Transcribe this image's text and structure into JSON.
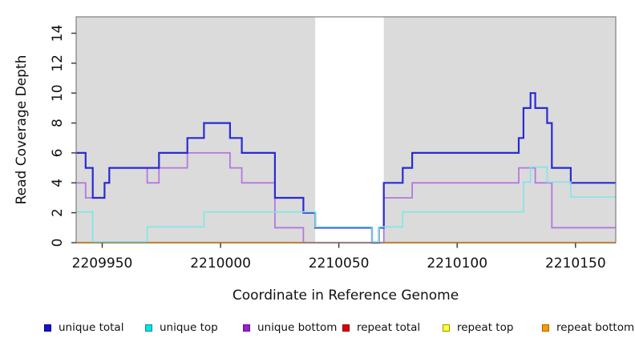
{
  "figure": {
    "y_axis_label": "Read Coverage Depth",
    "x_axis_label": "Coordinate in Reference Genome"
  },
  "legend": {
    "items": [
      {
        "label": "unique total",
        "fill": "#1414CC",
        "border": "#00008B"
      },
      {
        "label": "unique top",
        "fill": "#00E5E5",
        "border": "#008B8B"
      },
      {
        "label": "unique bottom",
        "fill": "#9B1FD1",
        "border": "#5A0F8C"
      },
      {
        "label": "repeat total",
        "fill": "#E00000",
        "border": "#8B0000"
      },
      {
        "label": "repeat top",
        "fill": "#FFFF33",
        "border": "#999900"
      },
      {
        "label": "repeat bottom",
        "fill": "#FF9900",
        "border": "#A66300"
      }
    ]
  },
  "chart_data": {
    "type": "line",
    "subtype": "step-coverage",
    "title": "",
    "xlabel": "Coordinate in Reference Genome",
    "ylabel": "Read Coverage Depth",
    "xlim": [
      2209939,
      2210167
    ],
    "ylim": [
      0,
      15.1
    ],
    "x_ticks": [
      2209950,
      2210000,
      2210050,
      2210100,
      2210150
    ],
    "y_ticks": [
      0,
      2,
      4,
      6,
      8,
      10,
      12,
      14
    ],
    "grid": false,
    "legend_position": "bottom",
    "panel_background": "#DBDBDB",
    "uncovered_band": {
      "x0": 2210040,
      "x1": 2210069,
      "color": "#FFFFFF"
    },
    "frame_color": "#7F7F7F",
    "tick_color": "#333333",
    "series": [
      {
        "name": "unique total",
        "color": "#2A2AD4",
        "points": [
          [
            2209939,
            6
          ],
          [
            2209943,
            5
          ],
          [
            2209946,
            3
          ],
          [
            2209951,
            4
          ],
          [
            2209953,
            5
          ],
          [
            2209974,
            6
          ],
          [
            2209986,
            7
          ],
          [
            2209993,
            8
          ],
          [
            2210004,
            7
          ],
          [
            2210009,
            6
          ],
          [
            2210023,
            3
          ],
          [
            2210035,
            2
          ],
          [
            2210040,
            1
          ],
          [
            2210064,
            0
          ],
          [
            2210067,
            1
          ],
          [
            2210069,
            4
          ],
          [
            2210077,
            5
          ],
          [
            2210081,
            6
          ],
          [
            2210126,
            7
          ],
          [
            2210128,
            9
          ],
          [
            2210131,
            10
          ],
          [
            2210133,
            9
          ],
          [
            2210138,
            8
          ],
          [
            2210140,
            5
          ],
          [
            2210148,
            4
          ],
          [
            2210167,
            4
          ]
        ]
      },
      {
        "name": "unique top",
        "color": "#7FE6E6",
        "points": [
          [
            2209939,
            2
          ],
          [
            2209946,
            0
          ],
          [
            2209969,
            1
          ],
          [
            2209993,
            2
          ],
          [
            2210040,
            1
          ],
          [
            2210064,
            0
          ],
          [
            2210067,
            1
          ],
          [
            2210077,
            2
          ],
          [
            2210128,
            4
          ],
          [
            2210131,
            5
          ],
          [
            2210138,
            4
          ],
          [
            2210148,
            3
          ],
          [
            2210167,
            3
          ]
        ]
      },
      {
        "name": "unique bottom",
        "color": "#B478E0",
        "points": [
          [
            2209939,
            4
          ],
          [
            2209943,
            3
          ],
          [
            2209951,
            4
          ],
          [
            2209953,
            5
          ],
          [
            2209969,
            4
          ],
          [
            2209974,
            5
          ],
          [
            2209986,
            6
          ],
          [
            2210004,
            5
          ],
          [
            2210009,
            4
          ],
          [
            2210023,
            1
          ],
          [
            2210035,
            0
          ],
          [
            2210069,
            3
          ],
          [
            2210081,
            4
          ],
          [
            2210126,
            5
          ],
          [
            2210133,
            4
          ],
          [
            2210140,
            1
          ],
          [
            2210167,
            1
          ]
        ]
      },
      {
        "name": "repeat total",
        "color": "#DD0000",
        "points": [
          [
            2209939,
            0
          ],
          [
            2210167,
            0
          ]
        ]
      },
      {
        "name": "repeat top",
        "color": "#FFFF00",
        "points": [
          [
            2209939,
            0
          ],
          [
            2210167,
            0
          ]
        ]
      },
      {
        "name": "repeat bottom",
        "color": "#FF9500",
        "points": [
          [
            2209939,
            0
          ],
          [
            2210167,
            0
          ]
        ]
      }
    ],
    "draw_order": [
      "repeat total",
      "repeat top",
      "repeat bottom",
      "unique bottom",
      "unique total",
      "unique top"
    ]
  }
}
